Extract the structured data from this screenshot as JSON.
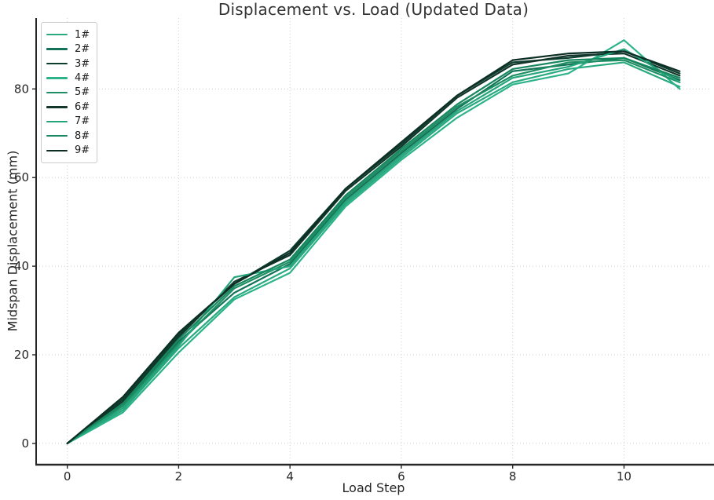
{
  "figure": {
    "kind": "matplotlib-line-chart",
    "background": "#ffffff"
  },
  "chart_data": {
    "type": "line",
    "title": "Displacement vs. Load (Updated Data)",
    "xlabel": "Load Step",
    "ylabel": "Midspan Displacement (mm)",
    "x": [
      0,
      1,
      2,
      3,
      4,
      5,
      6,
      7,
      8,
      9,
      10,
      11
    ],
    "xticks": [
      0,
      2,
      4,
      6,
      8,
      10
    ],
    "yticks": [
      0,
      20,
      40,
      60,
      80
    ],
    "xlim": [
      -0.56,
      11.56
    ],
    "ylim": [
      -4.8,
      96
    ],
    "grid": "dotted",
    "legend_position": "upper-left",
    "series": [
      {
        "name": "1#",
        "color": "#29a97e",
        "values": [
          0,
          7.5,
          21.5,
          33,
          39.5,
          54,
          64.5,
          74.5,
          81.5,
          84.5,
          86,
          80.5
        ]
      },
      {
        "name": "2#",
        "color": "#137258",
        "values": [
          0,
          9,
          23,
          34,
          40.5,
          55,
          65.5,
          75.5,
          84,
          85.5,
          87,
          82
        ]
      },
      {
        "name": "3#",
        "color": "#0d3d2e",
        "values": [
          0,
          10,
          24.5,
          36,
          43.5,
          57.5,
          67.5,
          78.5,
          86,
          87,
          88.5,
          83.5
        ]
      },
      {
        "name": "4#",
        "color": "#2db389",
        "values": [
          0,
          7,
          20.5,
          32.5,
          38.5,
          53.5,
          64,
          73.5,
          81,
          83.5,
          91,
          80
        ]
      },
      {
        "name": "5#",
        "color": "#1e8e63",
        "values": [
          0,
          8.5,
          22.5,
          35,
          41,
          55.5,
          66,
          76,
          83,
          86,
          86.5,
          81.5
        ]
      },
      {
        "name": "6#",
        "color": "#123629",
        "values": [
          0,
          9.5,
          24,
          36.5,
          42.5,
          57,
          67,
          78,
          85.5,
          87.5,
          88,
          83
        ]
      },
      {
        "name": "7#",
        "color": "#25a47b",
        "values": [
          0,
          8,
          22,
          37.5,
          40,
          54.5,
          65,
          75,
          82.5,
          85,
          89,
          81.5
        ]
      },
      {
        "name": "8#",
        "color": "#17875f",
        "values": [
          0,
          9,
          23.5,
          35.5,
          41.5,
          56,
          66.5,
          76.5,
          84.5,
          86.5,
          87,
          82.5
        ]
      },
      {
        "name": "9#",
        "color": "#0c2e25",
        "values": [
          0,
          10.5,
          25,
          36,
          43,
          57.5,
          68,
          78.5,
          86.5,
          88,
          88.5,
          84
        ]
      }
    ],
    "style": {
      "grid_color": "#cfcfcf",
      "axis_color": "#262626",
      "title_color": "#333333",
      "tick_label_color": "#262626",
      "legend_border_color": "#cccccc",
      "line_width": 2.2
    }
  }
}
